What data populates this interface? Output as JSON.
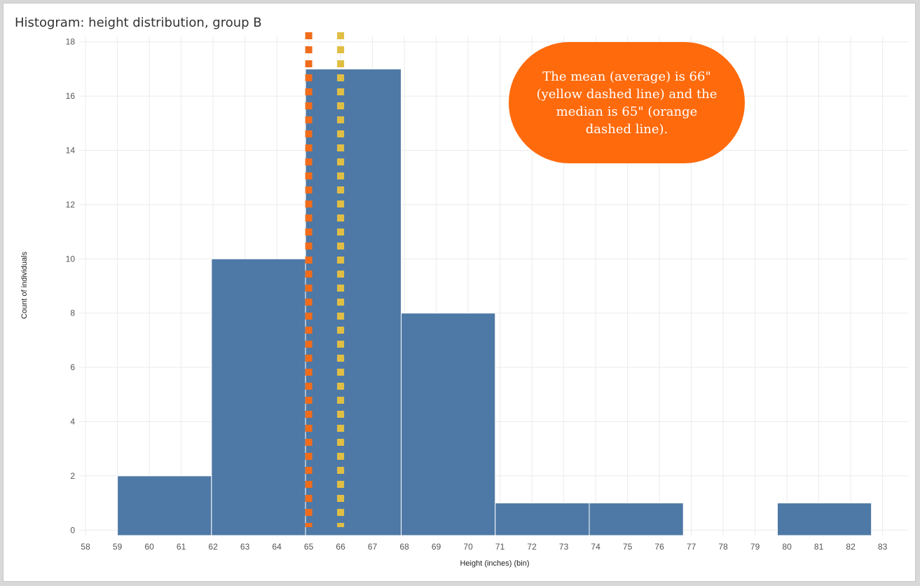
{
  "chart_data": {
    "type": "bar",
    "title": "Histogram: height distribution, group B",
    "xlabel": "Height (inches) (bin)",
    "ylabel": "Count of individuals",
    "xlim": [
      57.8,
      83.8
    ],
    "ylim": [
      -0.2,
      18.2
    ],
    "x_ticks": [
      58,
      59,
      60,
      61,
      62,
      63,
      64,
      65,
      66,
      67,
      68,
      69,
      70,
      71,
      72,
      73,
      74,
      75,
      76,
      77,
      78,
      79,
      80,
      81,
      82,
      83
    ],
    "y_ticks": [
      0,
      2,
      4,
      6,
      8,
      10,
      12,
      14,
      16,
      18
    ],
    "grid": true,
    "bins": [
      {
        "start": 59,
        "end": 61.95,
        "count": 2
      },
      {
        "start": 61.95,
        "end": 64.9,
        "count": 10
      },
      {
        "start": 64.9,
        "end": 67.9,
        "count": 17
      },
      {
        "start": 67.9,
        "end": 70.85,
        "count": 8
      },
      {
        "start": 70.85,
        "end": 73.8,
        "count": 1
      },
      {
        "start": 73.8,
        "end": 76.75,
        "count": 1
      },
      {
        "start": 79.7,
        "end": 82.65,
        "count": 1
      }
    ],
    "reference_lines": [
      {
        "value": 65,
        "color": "#f06c1b"
      },
      {
        "value": 66,
        "color": "#e0be44"
      }
    ],
    "bar_color": "#4e79a6",
    "annotation": "The mean (average) is 66\" (yellow dashed line) and the median is 65\" (orange dashed line)."
  },
  "colors": {
    "callout_bg": "#ff6a0c",
    "gridline": "#ebebeb"
  }
}
